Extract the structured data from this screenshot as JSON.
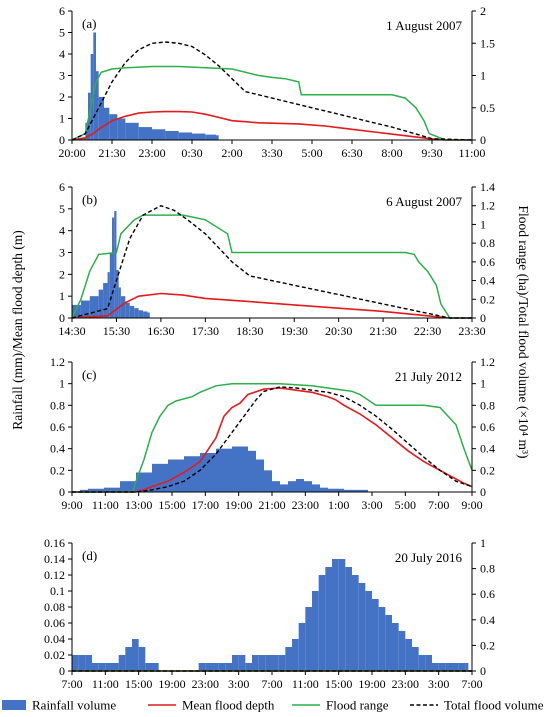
{
  "y_axis_label": "Rainfall  (mm)/Mean flood depth (m)",
  "y2_axis_label": "Flood range (ha)/Total flood volume (×10⁴ m³)",
  "legend": [
    {
      "label": "Rainfall volume",
      "kind": "bar",
      "color": "#4472C4"
    },
    {
      "label": "Mean flood depth",
      "kind": "line",
      "color": "#E41A1C"
    },
    {
      "label": "Flood range",
      "kind": "line",
      "color": "#2CB04A"
    },
    {
      "label": "Total flood volume",
      "kind": "dash",
      "color": "#000000"
    }
  ],
  "colors": {
    "rain": "#4472C4",
    "depth": "#E41A1C",
    "range": "#2CB04A",
    "volume": "#000000"
  },
  "chart_data": [
    {
      "type": "bar",
      "panel": "(a)",
      "date": "1 August  2007",
      "x_range": [
        0,
        15
      ],
      "x_ticks": [
        "20:00",
        "21:30",
        "23:00",
        "0:30",
        "2:00",
        "3:30",
        "5:00",
        "6:30",
        "8:00",
        "9:30",
        "11:00"
      ],
      "ylim": [
        0,
        6
      ],
      "y_ticks": [
        "0",
        "1",
        "2",
        "3",
        "4",
        "5",
        "6"
      ],
      "y2lim": [
        0,
        2
      ],
      "y2_ticks": [
        "0",
        "0.5",
        "1",
        "1.5",
        "2"
      ],
      "rainfall": {
        "x": [
          0.3,
          0.5,
          0.6,
          0.7,
          0.8,
          0.9,
          1.0,
          1.2,
          1.4,
          1.7,
          2.0,
          2.5,
          3.0,
          3.5,
          4.0,
          4.5,
          5.0,
          5.4,
          5.5
        ],
        "y": [
          0.1,
          0.8,
          2.2,
          4.0,
          5.0,
          3.2,
          2.0,
          1.5,
          1.2,
          1.0,
          0.8,
          0.6,
          0.5,
          0.42,
          0.35,
          0.3,
          0.25,
          0.22,
          0
        ]
      },
      "mean_flood_depth": {
        "x": [
          0,
          0.5,
          0.8,
          1.0,
          1.5,
          2.0,
          2.5,
          3.0,
          3.5,
          4.0,
          4.5,
          5.0,
          5.5,
          6.0,
          6.5,
          7.0,
          7.5,
          8.5,
          9.5,
          10.5,
          11.5,
          12.5,
          13.5,
          14.0,
          15.0
        ],
        "y": [
          0,
          0.1,
          0.3,
          0.5,
          0.9,
          1.1,
          1.25,
          1.3,
          1.32,
          1.32,
          1.3,
          1.2,
          1.05,
          0.9,
          0.85,
          0.8,
          0.78,
          0.75,
          0.65,
          0.5,
          0.35,
          0.2,
          0.05,
          0,
          0
        ]
      },
      "flood_range": {
        "x": [
          0,
          0.5,
          0.7,
          0.9,
          1.1,
          1.5,
          2.0,
          3.0,
          4.0,
          5.0,
          6.0,
          7.0,
          7.5,
          8.0,
          8.5,
          8.6,
          12.0,
          12.5,
          12.9,
          13.2,
          13.4,
          14.0,
          15.0
        ],
        "y": [
          0,
          0.1,
          0.5,
          0.9,
          1.05,
          1.1,
          1.12,
          1.14,
          1.14,
          1.12,
          1.1,
          1.0,
          0.97,
          0.95,
          0.9,
          0.7,
          0.7,
          0.65,
          0.5,
          0.3,
          0.1,
          0,
          0
        ]
      },
      "total_flood_volume": {
        "x": [
          0,
          0.5,
          1.0,
          1.5,
          2.0,
          2.5,
          3.0,
          3.5,
          4.0,
          4.5,
          5.0,
          5.5,
          6.0,
          6.5,
          7.0,
          7.5,
          8.0,
          9.0,
          10.0,
          11.0,
          12.0,
          13.0,
          13.5,
          15.0
        ],
        "y": [
          0,
          0.1,
          0.5,
          0.9,
          1.2,
          1.4,
          1.5,
          1.52,
          1.5,
          1.45,
          1.32,
          1.15,
          0.95,
          0.75,
          0.7,
          0.65,
          0.6,
          0.5,
          0.4,
          0.3,
          0.2,
          0.08,
          0.02,
          0
        ]
      }
    },
    {
      "type": "bar",
      "panel": "(b)",
      "date": "6 August 2007",
      "x_range": [
        0,
        9
      ],
      "x_ticks": [
        "14:30",
        "15:30",
        "16:30",
        "17:30",
        "18:30",
        "19:30",
        "20:30",
        "21:30",
        "22:30",
        "23:30"
      ],
      "ylim": [
        0,
        6
      ],
      "y_ticks": [
        "0",
        "1",
        "2",
        "3",
        "4",
        "5",
        "6"
      ],
      "y2lim": [
        0,
        1.4
      ],
      "y2_ticks": [
        "0",
        "0.2",
        "0.4",
        "0.6",
        "0.8",
        "1",
        "1.2",
        "1.4"
      ],
      "rainfall": {
        "x": [
          0,
          0.2,
          0.4,
          0.6,
          0.7,
          0.8,
          0.85,
          0.9,
          0.95,
          1.0,
          1.05,
          1.1,
          1.2,
          1.3,
          1.4,
          1.5,
          1.6,
          1.7,
          1.75
        ],
        "y": [
          0.6,
          0.8,
          1.0,
          1.3,
          1.6,
          2.1,
          3.0,
          4.6,
          4.9,
          2.2,
          1.4,
          1.0,
          0.7,
          0.55,
          0.45,
          0.35,
          0.3,
          0.25,
          0
        ]
      },
      "mean_flood_depth": {
        "x": [
          0,
          0.8,
          1.0,
          1.2,
          1.5,
          2.0,
          2.5,
          3.0,
          4.0,
          5.0,
          6.0,
          7.0,
          8.0,
          8.5,
          9.0
        ],
        "y": [
          0,
          0.1,
          0.4,
          0.7,
          1.0,
          1.12,
          1.05,
          0.9,
          0.75,
          0.6,
          0.45,
          0.3,
          0.1,
          0,
          0
        ]
      },
      "flood_range": {
        "x": [
          0,
          0.2,
          0.4,
          0.6,
          1.0,
          1.1,
          1.4,
          1.6,
          2.0,
          2.5,
          3.0,
          3.5,
          3.6,
          7.5,
          7.7,
          7.8,
          8.0,
          8.2,
          8.3,
          8.5,
          9.0
        ],
        "y": [
          0,
          0.2,
          0.5,
          0.68,
          0.7,
          0.9,
          1.05,
          1.1,
          1.1,
          1.1,
          1.05,
          0.9,
          0.7,
          0.7,
          0.68,
          0.6,
          0.5,
          0.35,
          0.15,
          0,
          0
        ]
      },
      "total_flood_volume": {
        "x": [
          0,
          0.8,
          1.0,
          1.3,
          1.6,
          2.0,
          2.3,
          2.6,
          3.0,
          3.3,
          3.6,
          4.0,
          5.0,
          6.0,
          7.0,
          8.0,
          8.5,
          9.0
        ],
        "y": [
          0,
          0.1,
          0.4,
          0.85,
          1.1,
          1.2,
          1.15,
          1.05,
          0.9,
          0.75,
          0.6,
          0.45,
          0.35,
          0.25,
          0.15,
          0.05,
          0,
          0
        ]
      }
    },
    {
      "type": "bar",
      "panel": "(c)",
      "date": "21 July 2012",
      "x_range": [
        0,
        25
      ],
      "x_ticks": [
        "9:00",
        "11:00",
        "13:00",
        "15:00",
        "17:00",
        "19:00",
        "21:00",
        "23:00",
        "1:00",
        "3:00",
        "5:00",
        "7:00",
        "9:00"
      ],
      "ylim": [
        0,
        1.2
      ],
      "y_ticks": [
        "0",
        "0.2",
        "0.4",
        "0.6",
        "0.8",
        "1",
        "1.2"
      ],
      "y2lim": [
        0,
        1.2
      ],
      "y2_ticks": [
        "0",
        "0.2",
        "0.4",
        "0.6",
        "0.8",
        "1",
        "1.2"
      ],
      "rainfall": {
        "x": [
          0.5,
          1.0,
          2.0,
          3.0,
          4.0,
          5.0,
          6.0,
          7.0,
          8.0,
          9.0,
          10.0,
          11.0,
          11.5,
          12.0,
          12.5,
          13.0,
          13.5,
          14.0,
          14.5,
          15.0,
          15.5,
          16.0,
          17.0,
          18.0,
          18.5
        ],
        "y": [
          0.02,
          0.03,
          0.04,
          0.1,
          0.18,
          0.26,
          0.3,
          0.33,
          0.36,
          0.4,
          0.42,
          0.38,
          0.3,
          0.2,
          0.1,
          0.07,
          0.1,
          0.12,
          0.1,
          0.07,
          0.04,
          0.03,
          0.02,
          0.02,
          0
        ]
      },
      "mean_flood_depth": {
        "x": [
          0,
          4.0,
          4.5,
          5.0,
          6.0,
          7.0,
          8.0,
          9.0,
          9.5,
          10.0,
          10.5,
          11.0,
          12.0,
          13.0,
          14.0,
          15.0,
          16.0,
          16.5,
          17.0,
          18.0,
          19.0,
          20.0,
          21.0,
          22.0,
          23.0,
          24.0,
          24.5,
          25.0
        ],
        "y": [
          0,
          0,
          0.02,
          0.05,
          0.1,
          0.18,
          0.28,
          0.5,
          0.7,
          0.78,
          0.82,
          0.9,
          0.95,
          0.96,
          0.94,
          0.92,
          0.88,
          0.85,
          0.8,
          0.72,
          0.62,
          0.5,
          0.38,
          0.28,
          0.2,
          0.12,
          0.08,
          0.05
        ]
      },
      "flood_range": {
        "x": [
          0,
          3.8,
          4.0,
          4.5,
          5.0,
          5.5,
          6.0,
          6.5,
          7.0,
          7.5,
          8.0,
          9.0,
          10.0,
          11.0,
          12.0,
          13.0,
          14.0,
          15.0,
          16.0,
          17.0,
          17.5,
          18.0,
          19.0,
          20.0,
          21.0,
          22.0,
          23.0,
          24.0,
          24.5,
          25.0
        ],
        "y": [
          0,
          0,
          0.1,
          0.3,
          0.55,
          0.7,
          0.8,
          0.84,
          0.86,
          0.88,
          0.92,
          0.98,
          1.0,
          1.0,
          1.0,
          1.0,
          0.99,
          0.98,
          0.96,
          0.94,
          0.93,
          0.9,
          0.8,
          0.8,
          0.8,
          0.8,
          0.78,
          0.62,
          0.4,
          0.2
        ]
      },
      "total_flood_volume": {
        "x": [
          0,
          4.0,
          4.5,
          5.0,
          6.0,
          7.0,
          8.0,
          9.0,
          10.0,
          11.0,
          11.5,
          12.0,
          13.0,
          14.0,
          15.0,
          16.0,
          17.0,
          18.0,
          19.0,
          20.0,
          21.0,
          22.0,
          23.0,
          24.0,
          25.0
        ],
        "y": [
          0,
          0,
          0.01,
          0.02,
          0.05,
          0.1,
          0.2,
          0.35,
          0.55,
          0.75,
          0.85,
          0.93,
          0.97,
          0.96,
          0.94,
          0.92,
          0.88,
          0.8,
          0.7,
          0.58,
          0.45,
          0.32,
          0.2,
          0.1,
          0.05
        ]
      }
    },
    {
      "type": "bar",
      "panel": "(d)",
      "date": "20 July 2016",
      "x_range": [
        0,
        60
      ],
      "x_ticks": [
        "7:00",
        "11:00",
        "15:00",
        "19:00",
        "23:00",
        "3:00",
        "7:00",
        "11:00",
        "15:00",
        "19:00",
        "23:00",
        "3:00",
        "7:00"
      ],
      "ylim": [
        0,
        0.16
      ],
      "y_ticks": [
        "0",
        "0.02",
        "0.04",
        "0.06",
        "0.08",
        "0.1",
        "0.12",
        "0.14",
        "0.16"
      ],
      "y2lim": [
        0,
        1
      ],
      "y2_ticks": [
        "0",
        "0.2",
        "0.4",
        "0.6",
        "0.8",
        "1"
      ],
      "rainfall": {
        "x": [
          0,
          1,
          2,
          3,
          4,
          5,
          6,
          7,
          8,
          9,
          10,
          11,
          12,
          13,
          14,
          15,
          16,
          17,
          18,
          19,
          20,
          21,
          22,
          23,
          24,
          25,
          26,
          27,
          28,
          29,
          30,
          31,
          32,
          33,
          34,
          35,
          36,
          37,
          38,
          39,
          40,
          41,
          42,
          43,
          44,
          45,
          46,
          47,
          48,
          49,
          50,
          51,
          52,
          53,
          54,
          55,
          56,
          57,
          58,
          59
        ],
        "y": [
          0.02,
          0.02,
          0.02,
          0.01,
          0.01,
          0.01,
          0.01,
          0.02,
          0.03,
          0.04,
          0.03,
          0.01,
          0.01,
          0,
          0,
          0,
          0,
          0,
          0,
          0.01,
          0.01,
          0.01,
          0.01,
          0.01,
          0.02,
          0.02,
          0.01,
          0.02,
          0.02,
          0.02,
          0.02,
          0.02,
          0.03,
          0.04,
          0.06,
          0.08,
          0.1,
          0.12,
          0.13,
          0.14,
          0.14,
          0.13,
          0.12,
          0.11,
          0.1,
          0.09,
          0.08,
          0.07,
          0.06,
          0.05,
          0.04,
          0.03,
          0.02,
          0.02,
          0.01,
          0.01,
          0.01,
          0.01,
          0.01,
          0.01
        ]
      },
      "mean_flood_depth": {
        "x": [
          0,
          60
        ],
        "y": [
          0,
          0
        ]
      },
      "flood_range": {
        "x": [
          0,
          60
        ],
        "y": [
          0,
          0
        ]
      },
      "total_flood_volume": {
        "x": [
          0,
          60
        ],
        "y": [
          0,
          0
        ]
      }
    }
  ]
}
